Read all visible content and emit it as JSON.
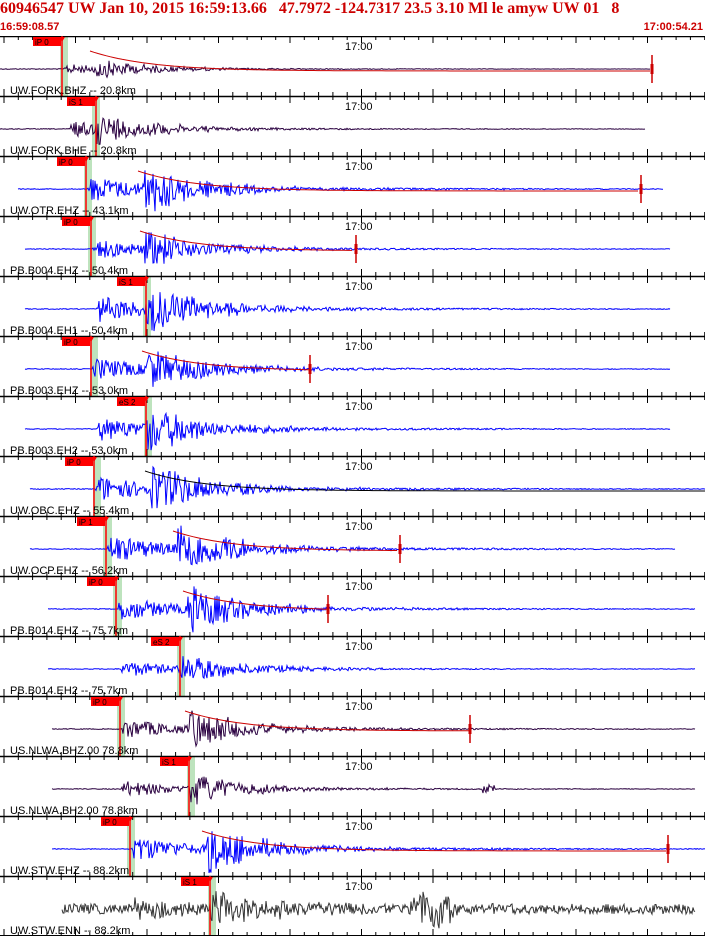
{
  "header": {
    "title": "60946547 UW Jan 10, 2015 16:59:13.66   47.7972 -124.7317 23.5 3.10 Ml le amyw UW 01   8",
    "start_time": "16:59:08.57",
    "end_time": "17:00:54.21"
  },
  "minute_label": "17:00",
  "colors": {
    "title": "#cc0000",
    "pick_box": "#ff0000",
    "pick_highlight": "#bde3bd",
    "trace_blue": "#0000ff",
    "trace_purple": "#2a0040",
    "trace_gray": "#333333",
    "coda_line": "#cc0000"
  },
  "traces": [
    {
      "label": "UW.FORK.BHZ -- 20.8km",
      "pick": "iP 0",
      "color": "#2a0040"
    },
    {
      "label": "UW.FORK.BHE -- 20.8km",
      "pick": "iS 1",
      "color": "#2a0040"
    },
    {
      "label": "UW.OTR.EHZ -- 43.1km",
      "pick": "iP 0",
      "color": "#0000ff"
    },
    {
      "label": "PB.B004.EHZ -- 50.4km",
      "pick": "iP 0",
      "color": "#0000ff"
    },
    {
      "label": "PB.B004.EH1 -- 50.4km",
      "pick": "iS 1",
      "color": "#0000ff"
    },
    {
      "label": "PB.B003.EHZ -- 53.0km",
      "pick": "iP 0",
      "color": "#0000ff"
    },
    {
      "label": "PB.B003.EH2 -- 53.0km",
      "pick": "eS 2",
      "color": "#0000ff"
    },
    {
      "label": "UW.OBC.EHZ -- 55.4km",
      "pick": "iP 0",
      "color": "#0000ff"
    },
    {
      "label": "UW.OCP.EHZ -- 56.2km",
      "pick": "iP 1",
      "color": "#0000ff"
    },
    {
      "label": "PB.B014.EHZ -- 75.7km",
      "pick": "iP 0",
      "color": "#0000ff"
    },
    {
      "label": "PB.B014.EH2 -- 75.7km",
      "pick": "eS 2",
      "color": "#0000ff"
    },
    {
      "label": "US.NLWA.BHZ.00 78.8km",
      "pick": "iP 0",
      "color": "#2a0040"
    },
    {
      "label": "US.NLWA.BH2.00 78.8km",
      "pick": "iS 1",
      "color": "#2a0040"
    },
    {
      "label": "UW.STW.EHZ -- 88.2km",
      "pick": "iP 0",
      "color": "#0000ff"
    },
    {
      "label": "UW.STW.ENN -- 88.2km",
      "pick": "iS 1",
      "color": "#333333"
    }
  ]
}
